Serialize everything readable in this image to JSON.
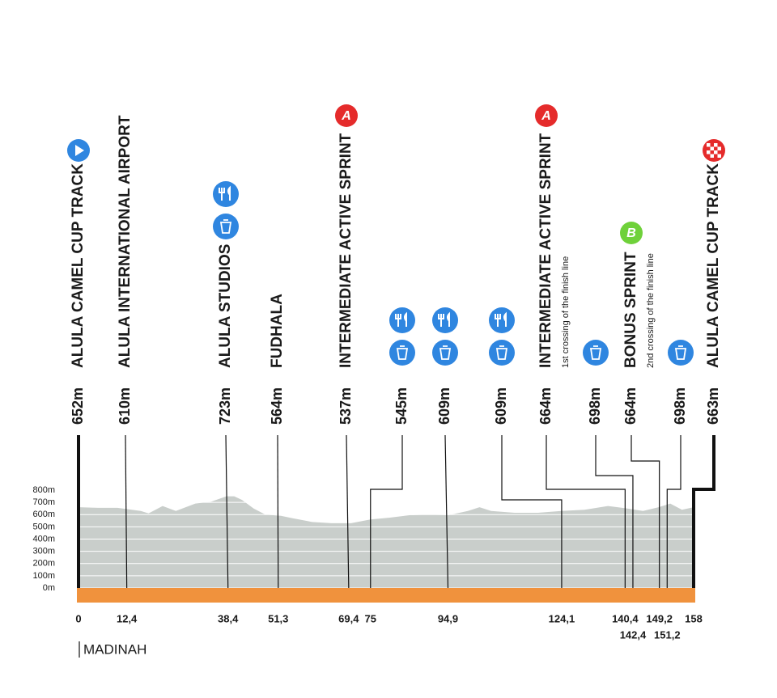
{
  "chart_data": {
    "type": "profile",
    "color": "#c9cecb",
    "road_color": "#f0923d",
    "x": [
      0,
      5,
      10,
      16,
      18,
      21.6,
      25,
      30,
      34,
      38,
      40,
      42,
      45,
      48,
      52,
      55,
      60,
      65,
      70,
      75,
      80,
      85,
      90,
      95,
      100,
      103,
      106,
      112,
      118,
      124,
      130,
      136,
      141,
      145,
      149,
      152,
      155,
      158
    ],
    "values": [
      660,
      655,
      655,
      630,
      610,
      670,
      630,
      690,
      705,
      750,
      750,
      720,
      650,
      600,
      590,
      570,
      540,
      530,
      530,
      560,
      575,
      595,
      600,
      595,
      630,
      660,
      630,
      615,
      615,
      630,
      640,
      670,
      650,
      630,
      660,
      690,
      640,
      660
    ],
    "xlim": [
      0,
      158
    ],
    "ylim": [
      0,
      800
    ],
    "yticks": [
      {
        "value": 0,
        "label": "0m"
      },
      {
        "value": 100,
        "label": "100m"
      },
      {
        "value": 200,
        "label": "200m"
      },
      {
        "value": 300,
        "label": "300m"
      },
      {
        "value": 400,
        "label": "400m"
      },
      {
        "value": 500,
        "label": "500m"
      },
      {
        "value": 600,
        "label": "600m"
      },
      {
        "value": 700,
        "label": "700m"
      },
      {
        "value": 800,
        "label": "800m"
      }
    ],
    "xticks": [
      0,
      {
        "value": 12.4,
        "label": "12,4"
      },
      {
        "value": 38.4,
        "label": "38,4"
      },
      {
        "value": 51.3,
        "label": "51,3"
      },
      {
        "value": 69.4,
        "label": "69,4"
      },
      75,
      {
        "value": 94.9,
        "label": "94,9"
      },
      {
        "value": 124.1,
        "label": "124,1"
      },
      {
        "value": 140.4,
        "label": "140,4"
      },
      {
        "value": 142.4,
        "label": "142,4"
      },
      {
        "value": 149.2,
        "label": "149,2"
      },
      {
        "value": 151.2,
        "label": "151,2"
      },
      158
    ],
    "markers": [
      {
        "km": 0,
        "altitude": {
          "value": 652,
          "label": "652m"
        },
        "name": "ALULA CAMEL CUP TRACK"
      },
      {
        "km": 12.4,
        "altitude": {
          "value": 610,
          "label": "610m"
        },
        "name": "ALULA INTERNATIONAL AIRPORT"
      },
      {
        "km": 38.4,
        "altitude": {
          "value": 723,
          "label": "723m"
        },
        "name": "ALULA STUDIOS"
      },
      {
        "km": 51.3,
        "altitude": {
          "value": 564,
          "label": "564m"
        },
        "name": "FUDHALA"
      },
      {
        "km": 69.4,
        "altitude": {
          "value": 537,
          "label": "537m"
        },
        "name": "INTERMEDIATE ACTIVE SPRINT",
        "badge": "A"
      },
      {
        "km": 75,
        "altitude": {
          "value": 545,
          "label": "545m"
        }
      },
      {
        "km": 94.9,
        "altitude": {
          "value": 609,
          "label": "609m"
        }
      },
      {
        "km": 124.1,
        "altitude": {
          "value": 609,
          "label": "609m"
        }
      },
      {
        "km": 140.4,
        "altitude": {
          "value": 664,
          "label": "664m"
        },
        "name": "INTERMEDIATE ACTIVE SPRINT",
        "note": "1st crossing of the finish line",
        "badge": "A"
      },
      {
        "km": 142.4,
        "altitude": {
          "value": 698,
          "label": "698m"
        }
      },
      {
        "km": 149.2,
        "altitude": {
          "value": 664,
          "label": "664m"
        },
        "name": "BONUS SPRINT",
        "note": "2nd crossing of the finish line",
        "badge": "B"
      },
      {
        "km": 151.2,
        "altitude": {
          "value": 698,
          "label": "698m"
        }
      },
      {
        "km": 158,
        "altitude": {
          "value": 663,
          "label": "663m"
        },
        "name": "ALULA CAMEL CUP TRACK"
      }
    ],
    "city": "MADINAH"
  }
}
